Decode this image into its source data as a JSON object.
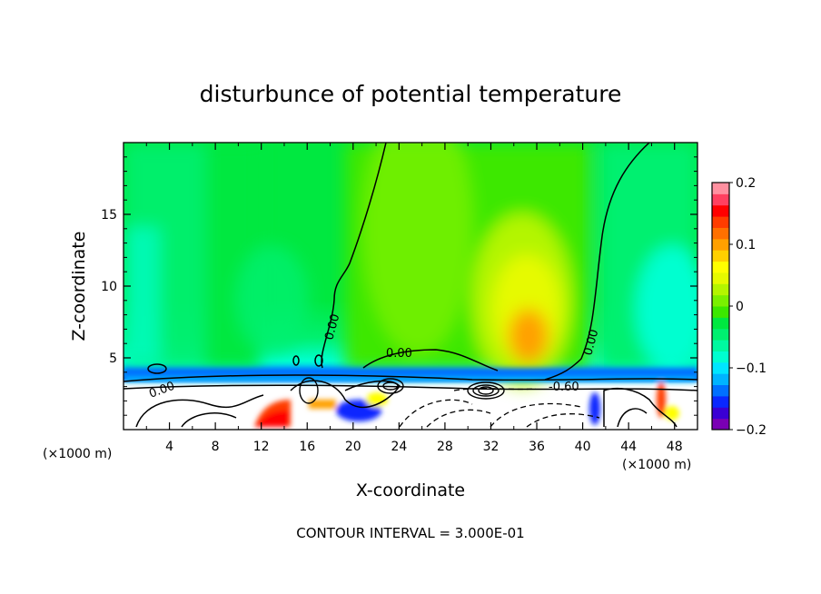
{
  "chart_data": {
    "type": "heatmap",
    "title": "disturbunce of potential temperature",
    "xlabel": "X-coordinate",
    "ylabel": "Z-coordinate",
    "x_unit_label": "(×1000 m)",
    "x_unit_label_right": "(×1000 m)",
    "xlim": [
      0,
      50
    ],
    "ylim": [
      0,
      20
    ],
    "x_ticks": [
      "4",
      "8",
      "12",
      "16",
      "20",
      "24",
      "28",
      "32",
      "36",
      "40",
      "44",
      "48"
    ],
    "y_ticks": [
      "5",
      "10",
      "15"
    ],
    "colorbar": {
      "range": [
        -0.2,
        0.2
      ],
      "tick_labels": [
        "0.2",
        "0.1",
        "0",
        "−0.1",
        "−0.2"
      ],
      "colors": [
        "#7a00b4",
        "#3a00d4",
        "#0a28ff",
        "#0070ff",
        "#00b4ff",
        "#00e6ff",
        "#00ffd0",
        "#00f8a0",
        "#00f070",
        "#00e840",
        "#3ce800",
        "#7af000",
        "#b4f500",
        "#e6fa00",
        "#ffff00",
        "#ffd000",
        "#ffa000",
        "#ff7000",
        "#ff3c00",
        "#ff0000",
        "#ff4060",
        "#ff90a0"
      ]
    },
    "contour_labels": [
      "0.00",
      "0.00",
      "0.00",
      "-0.60",
      "0.00"
    ],
    "contour_interval_text": "CONTOUR INTERVAL = 3.000E-01"
  }
}
